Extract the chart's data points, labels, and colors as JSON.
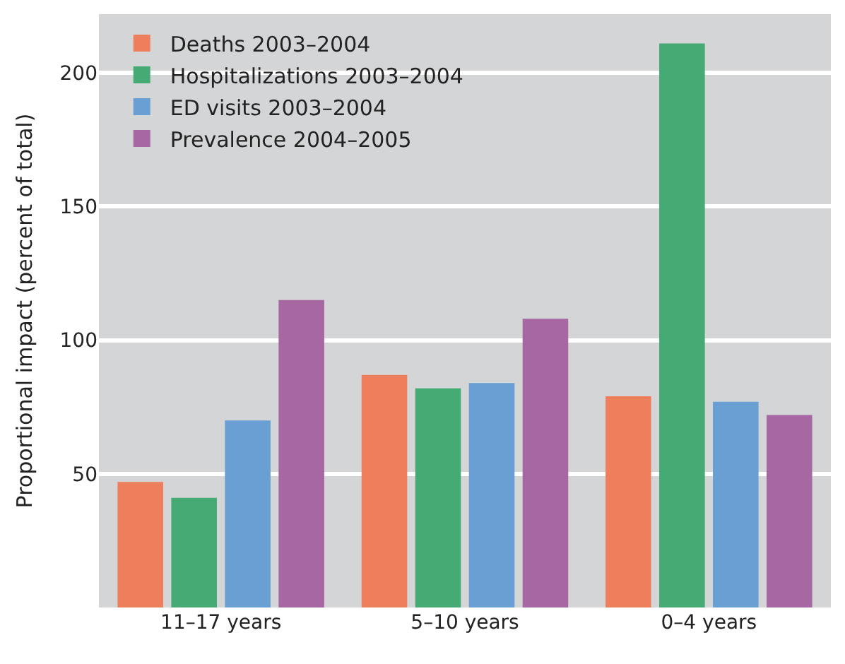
{
  "chart_data": {
    "type": "bar",
    "ylabel": "Proportional impact (percent of total)",
    "categories": [
      "11–17 years",
      "5–10 years",
      "0–4 years"
    ],
    "series": [
      {
        "name": "Deaths 2003–2004",
        "color": "#ee7f5c",
        "values": [
          47,
          87,
          79
        ]
      },
      {
        "name": "Hospitalizations 2003–2004",
        "color": "#45aa74",
        "values": [
          41,
          82,
          211
        ]
      },
      {
        "name": "ED visits 2003–2004",
        "color": "#6a9fd3",
        "values": [
          70,
          84,
          77
        ]
      },
      {
        "name": "Prevalence 2004–2005",
        "color": "#a667a3",
        "values": [
          115,
          108,
          72
        ]
      }
    ],
    "ylim": [
      0,
      222
    ],
    "yticks": [
      50,
      100,
      150,
      200
    ],
    "grid": "y",
    "legend": "top left"
  }
}
